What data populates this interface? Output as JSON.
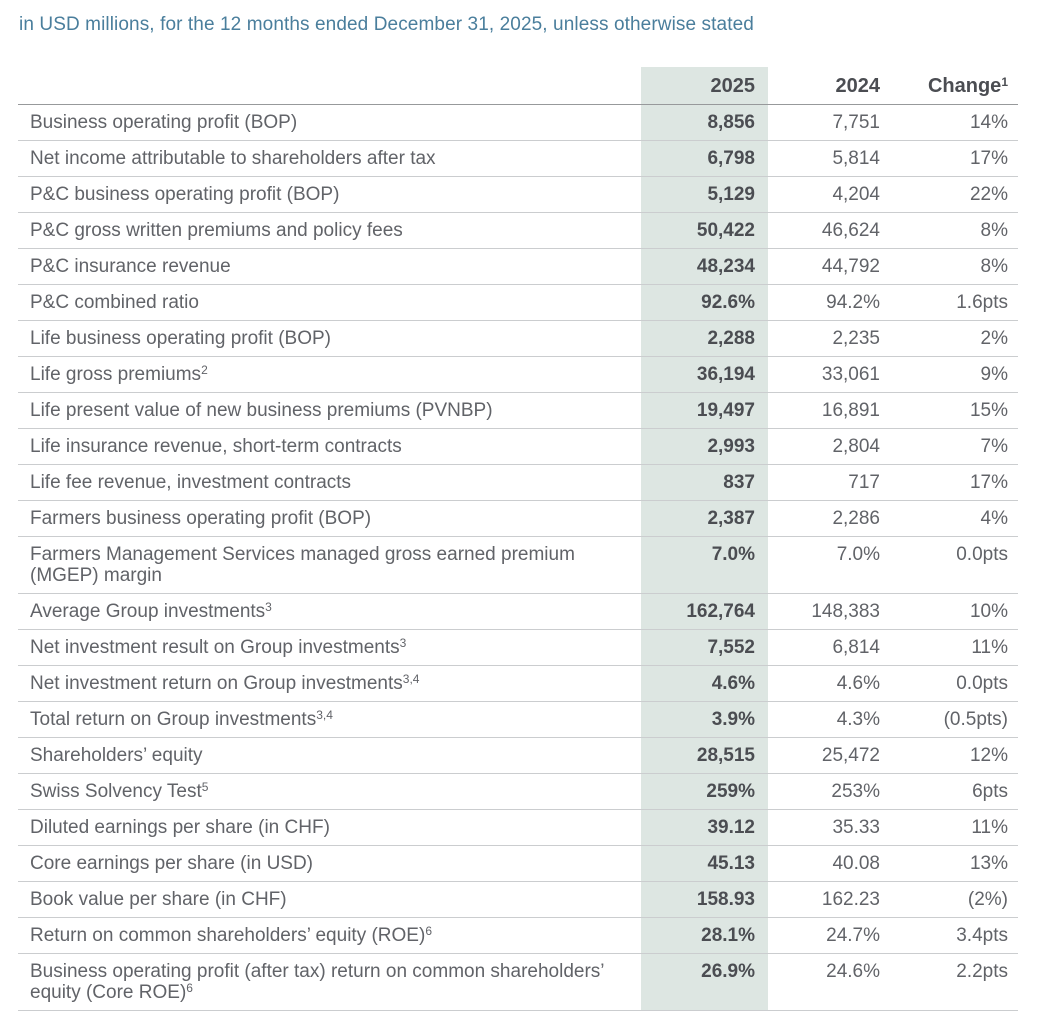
{
  "caption": "in USD millions, for the 12 months ended December 31, 2025, unless otherwise stated",
  "colors": {
    "highlight_bg": "#dde6e2",
    "caption_text": "#4a7e9c",
    "bold_text": "#4b4d52",
    "regular_text": "#616368",
    "row_rule": "#cbcdcf",
    "header_rule": "#97999b"
  },
  "table": {
    "header": {
      "label_col": "",
      "col_2025": "2025",
      "col_2024": "2024",
      "change_label": "Change",
      "change_sup": "1"
    },
    "rows": [
      {
        "label": "Business operating profit (BOP)",
        "sup": "",
        "v2025": "8,856",
        "v2024": "7,751",
        "change": "14%"
      },
      {
        "label": "Net income attributable to shareholders after tax",
        "sup": "",
        "v2025": "6,798",
        "v2024": "5,814",
        "change": "17%"
      },
      {
        "label": "P&C business operating profit (BOP)",
        "sup": "",
        "v2025": "5,129",
        "v2024": "4,204",
        "change": "22%"
      },
      {
        "label": "P&C gross written premiums and policy fees",
        "sup": "",
        "v2025": "50,422",
        "v2024": "46,624",
        "change": "8%"
      },
      {
        "label": "P&C insurance revenue",
        "sup": "",
        "v2025": "48,234",
        "v2024": "44,792",
        "change": "8%"
      },
      {
        "label": "P&C combined ratio",
        "sup": "",
        "v2025": "92.6%",
        "v2024": "94.2%",
        "change": "1.6pts"
      },
      {
        "label": "Life business operating profit (BOP)",
        "sup": "",
        "v2025": "2,288",
        "v2024": "2,235",
        "change": "2%"
      },
      {
        "label": "Life gross premiums",
        "sup": "2",
        "v2025": "36,194",
        "v2024": "33,061",
        "change": "9%"
      },
      {
        "label": "Life present value of new business premiums (PVNBP)",
        "sup": "",
        "v2025": "19,497",
        "v2024": "16,891",
        "change": "15%"
      },
      {
        "label": "Life insurance revenue, short-term contracts",
        "sup": "",
        "v2025": "2,993",
        "v2024": "2,804",
        "change": "7%"
      },
      {
        "label": "Life fee revenue, investment contracts",
        "sup": "",
        "v2025": "837",
        "v2024": "717",
        "change": "17%"
      },
      {
        "label": "Farmers business operating profit (BOP)",
        "sup": "",
        "v2025": "2,387",
        "v2024": "2,286",
        "change": "4%"
      },
      {
        "label": "Farmers Management Services managed gross earned premium (MGEP) margin",
        "sup": "",
        "v2025": "7.0%",
        "v2024": "7.0%",
        "change": "0.0pts"
      },
      {
        "label": "Average Group investments",
        "sup": "3",
        "v2025": "162,764",
        "v2024": "148,383",
        "change": "10%"
      },
      {
        "label": "Net investment result on Group investments",
        "sup": "3",
        "v2025": "7,552",
        "v2024": "6,814",
        "change": "11%"
      },
      {
        "label": "Net investment return on Group investments",
        "sup": "3,4",
        "v2025": "4.6%",
        "v2024": "4.6%",
        "change": "0.0pts"
      },
      {
        "label": "Total return on Group investments",
        "sup": "3,4",
        "v2025": "3.9%",
        "v2024": "4.3%",
        "change": "(0.5pts)"
      },
      {
        "label": "Shareholders’ equity",
        "sup": "",
        "v2025": "28,515",
        "v2024": "25,472",
        "change": "12%"
      },
      {
        "label": "Swiss Solvency Test",
        "sup": "5",
        "v2025": "259%",
        "v2024": "253%",
        "change": "6pts"
      },
      {
        "label": "Diluted earnings per share (in CHF)",
        "sup": "",
        "v2025": "39.12",
        "v2024": "35.33",
        "change": "11%"
      },
      {
        "label": "Core earnings per share (in USD)",
        "sup": "",
        "v2025": "45.13",
        "v2024": "40.08",
        "change": "13%"
      },
      {
        "label": "Book value per share (in CHF)",
        "sup": "",
        "v2025": "158.93",
        "v2024": "162.23",
        "change": "(2%)"
      },
      {
        "label": "Return on common shareholders’ equity (ROE)",
        "sup": "6",
        "v2025": "28.1%",
        "v2024": "24.7%",
        "change": "3.4pts"
      },
      {
        "label": "Business operating profit (after tax) return on common shareholders’ equity (Core ROE)",
        "sup": "6",
        "v2025": "26.9%",
        "v2024": "24.6%",
        "change": "2.2pts"
      }
    ]
  }
}
